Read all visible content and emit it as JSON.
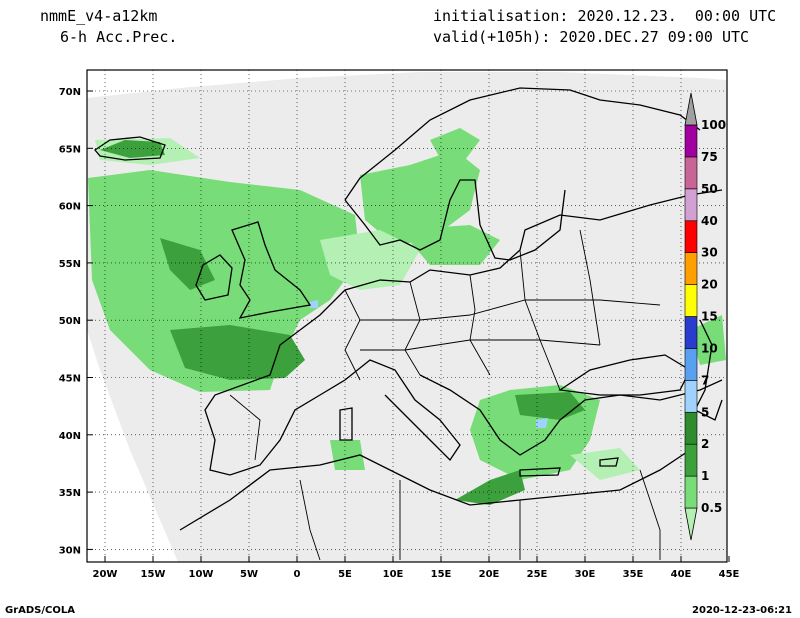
{
  "header": {
    "model": "nmmE_v4-a12km",
    "field": "6-h Acc.Prec.",
    "init": "initialisation: 2020.12.23.  00:00 UTC",
    "valid": "valid(+105h): 2020.DEC.27 09:00 UTC"
  },
  "footer": {
    "left": "GrADS/COLA",
    "right": "2020-12-23-06:21"
  },
  "map": {
    "lat_ticks": [
      "70N",
      "65N",
      "60N",
      "55N",
      "50N",
      "45N",
      "40N",
      "35N",
      "30N"
    ],
    "lon_ticks": [
      "20W",
      "15W",
      "10W",
      "5W",
      "0",
      "5E",
      "10E",
      "15E",
      "20E",
      "25E",
      "30E",
      "35E",
      "40E",
      "45E"
    ],
    "domain_fill": "#ececec",
    "land_line": "#000000"
  },
  "colorbar": {
    "levels": [
      "0.5",
      "1",
      "2",
      "5",
      "7",
      "10",
      "15",
      "20",
      "30",
      "40",
      "50",
      "75",
      "100"
    ],
    "colors": [
      "#b4f0b4",
      "#78dc78",
      "#3ca03c",
      "#2e8b2e",
      "#a0d2ff",
      "#5aa0f0",
      "#2a3ccd",
      "#ffff00",
      "#ffa000",
      "#ff0000",
      "#d2a0d2",
      "#c86496",
      "#a000a0",
      "#a0a0a0"
    ]
  }
}
